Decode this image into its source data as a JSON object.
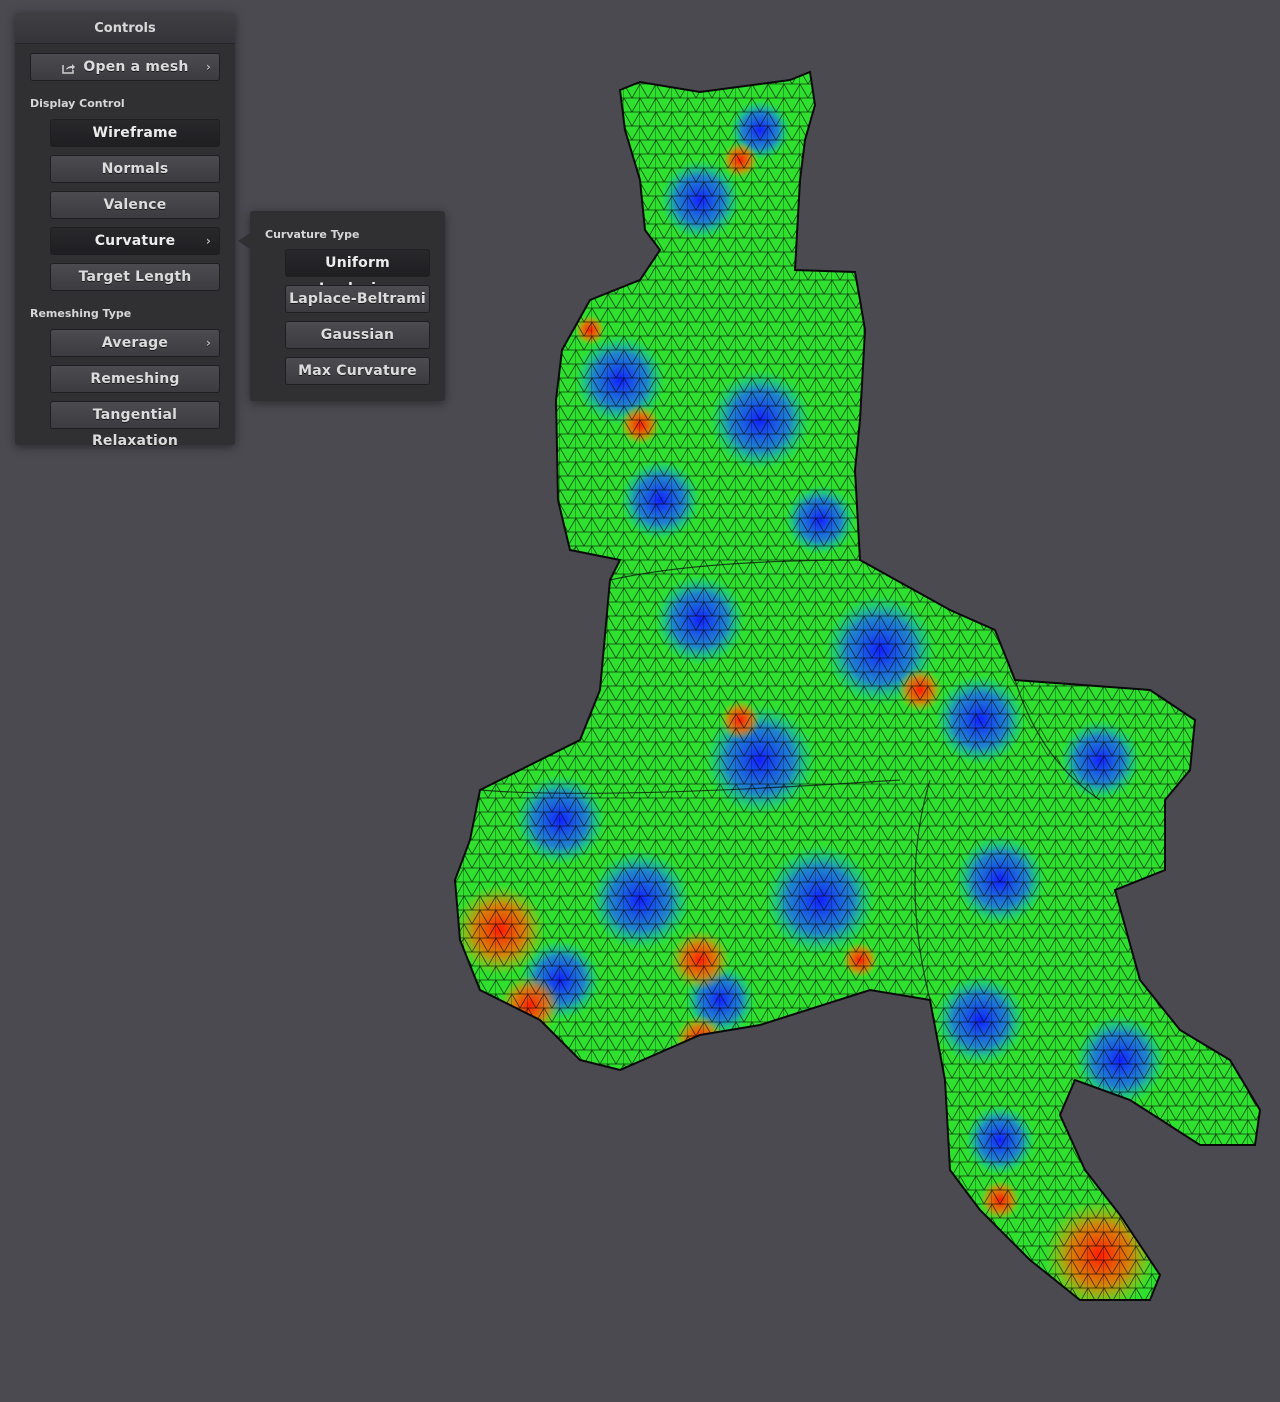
{
  "panel": {
    "title": "Controls",
    "open_mesh_label": "Open a mesh",
    "display_control_label": "Display Control",
    "display_buttons": {
      "wireframe": "Wireframe",
      "normals": "Normals",
      "valence": "Valence",
      "curvature": "Curvature",
      "target_length": "Target Length"
    },
    "remeshing_type_label": "Remeshing Type",
    "remeshing_buttons": {
      "average": "Average",
      "remeshing": "Remeshing",
      "tangential_relaxation": "Tangential Relaxation"
    }
  },
  "curvature_popup": {
    "title": "Curvature Type",
    "options": {
      "uniform_laplacian": "Uniform Laplacian",
      "laplace_beltrami": "Laplace-Beltrami",
      "gaussian": "Gaussian",
      "max_curvature": "Max Curvature"
    },
    "selected": "Uniform Laplacian"
  },
  "colors": {
    "background": "#4b4a51",
    "panel": "#303033",
    "mesh_low": "#1a3cff",
    "mesh_mid": "#2fe02f",
    "mesh_high": "#ff2a10"
  },
  "icons": {
    "open_mesh": "share-icon",
    "submenu": "chevron-right-icon"
  }
}
